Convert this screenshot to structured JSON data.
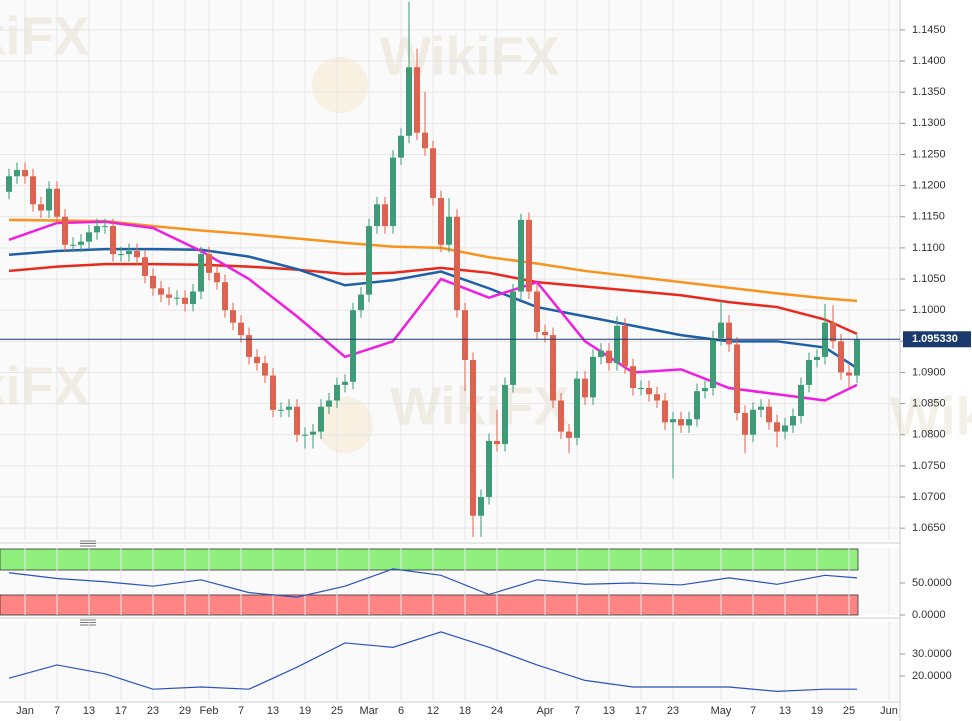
{
  "watermark": "WikiFX",
  "chart_data": [
    {
      "type": "candlestick",
      "categories": [
        null,
        null,
        "Jan",
        null,
        null,
        null,
        "7",
        null,
        null,
        null,
        "13",
        null,
        null,
        null,
        "17",
        null,
        null,
        null,
        "23",
        null,
        null,
        null,
        "29",
        null,
        null,
        "Feb",
        null,
        null,
        null,
        "7",
        null,
        null,
        null,
        "13",
        null,
        null,
        null,
        "19",
        null,
        null,
        null,
        "25",
        null,
        null,
        null,
        "Mar",
        null,
        null,
        null,
        "6",
        null,
        null,
        null,
        "12",
        null,
        null,
        null,
        "18",
        null,
        null,
        null,
        "24",
        null,
        null,
        null,
        null,
        null,
        "Apr",
        null,
        null,
        null,
        "7",
        null,
        null,
        null,
        "13",
        null,
        null,
        null,
        "17",
        null,
        null,
        null,
        "23",
        null,
        null,
        null,
        null,
        null,
        "May",
        null,
        null,
        null,
        "7",
        null,
        null,
        null,
        "13",
        null,
        null,
        null,
        "19",
        null,
        null,
        null,
        "25",
        null,
        null,
        null,
        null,
        "Jun"
      ],
      "open": [
        1.119,
        1.1215,
        1.1225,
        1.1215,
        1.117,
        1.116,
        1.1195,
        1.115,
        1.1105,
        1.1105,
        1.111,
        1.1125,
        1.1135,
        1.1135,
        1.109,
        1.109,
        1.1095,
        1.1085,
        1.1055,
        1.1035,
        1.1025,
        1.102,
        1.102,
        1.101,
        1.103,
        1.109,
        1.106,
        1.1045,
        1.1,
        1.098,
        1.096,
        1.0925,
        1.0915,
        1.0895,
        1.084,
        1.084,
        1.0845,
        1.08,
        1.08,
        1.0805,
        1.0845,
        1.0855,
        1.088,
        1.0885,
        1.1,
        1.1025,
        1.1135,
        1.117,
        1.1135,
        1.1245,
        1.128,
        1.139,
        1.1285,
        1.126,
        1.118,
        1.1105,
        1.115,
        1.1,
        1.092,
        1.067,
        1.07,
        1.079,
        1.0785,
        1.088,
        1.103,
        1.1145,
        1.103,
        1.0965,
        1.096,
        1.0855,
        1.0805,
        1.0795,
        1.089,
        1.086,
        1.0925,
        1.0935,
        1.0915,
        1.0975,
        1.091,
        1.0875,
        1.0875,
        1.0865,
        1.0855,
        1.082,
        1.0825,
        1.0815,
        1.0825,
        1.087,
        1.0875,
        1.0955,
        1.098,
        1.0945,
        1.0835,
        1.08,
        1.084,
        1.0845,
        1.082,
        1.0805,
        1.0815,
        1.083,
        1.088,
        1.092,
        1.0925,
        1.098,
        1.095,
        1.09,
        1.0895,
        null,
        null,
        null,
        null
      ],
      "high": [
        1.1227,
        1.1237,
        1.1237,
        1.1227,
        1.1182,
        1.1207,
        1.1207,
        1.1162,
        1.1117,
        1.1122,
        1.1137,
        1.1147,
        1.1147,
        1.1147,
        1.1102,
        1.1107,
        1.1107,
        1.1097,
        1.1067,
        1.1047,
        1.1037,
        1.1032,
        1.1032,
        1.1042,
        1.1102,
        1.1102,
        1.1072,
        1.1057,
        1.1012,
        1.0992,
        1.0972,
        1.0937,
        1.0927,
        1.0907,
        1.0852,
        1.0857,
        1.0857,
        1.0812,
        1.0817,
        1.0857,
        1.0867,
        1.0892,
        1.0897,
        1.1012,
        1.1037,
        1.1147,
        1.1182,
        1.1182,
        1.1257,
        1.1292,
        1.1495,
        1.142,
        1.135,
        1.1272,
        1.1192,
        1.118,
        1.1162,
        1.1012,
        1.0932,
        1.0712,
        1.0802,
        1.084,
        1.0892,
        1.1042,
        1.1155,
        1.1157,
        1.1042,
        1.0977,
        1.0972,
        1.0867,
        1.0817,
        1.0902,
        1.0902,
        1.0937,
        1.0947,
        1.0947,
        1.099,
        1.0987,
        1.0922,
        1.0887,
        1.0887,
        1.0877,
        1.0867,
        1.0837,
        1.0837,
        1.0837,
        1.0882,
        1.0887,
        1.0967,
        1.1015,
        1.0992,
        1.0957,
        1.0847,
        1.0852,
        1.0857,
        1.0857,
        1.0832,
        1.0827,
        1.0842,
        1.0892,
        1.0932,
        1.0937,
        1.101,
        1.1008,
        1.0962,
        1.0912,
        1.096,
        null,
        null,
        null,
        null
      ],
      "low": [
        1.1178,
        1.1203,
        1.1203,
        1.1158,
        1.1148,
        1.1148,
        1.1138,
        1.1093,
        1.1093,
        1.1093,
        1.1098,
        1.1113,
        1.1123,
        1.1078,
        1.1078,
        1.1078,
        1.1073,
        1.1043,
        1.1023,
        1.1013,
        1.1008,
        1.1008,
        1.0998,
        1.0998,
        1.1018,
        1.1048,
        1.1033,
        1.0988,
        1.0968,
        1.0948,
        1.0913,
        1.0903,
        1.0883,
        1.0828,
        1.0828,
        1.0828,
        1.0788,
        1.0778,
        1.0778,
        1.0793,
        1.0833,
        1.0843,
        1.0868,
        1.0873,
        1.0988,
        1.1013,
        1.1123,
        1.1123,
        1.1123,
        1.1233,
        1.1268,
        1.1273,
        1.1248,
        1.1168,
        1.1093,
        1.1093,
        1.0988,
        1.087,
        1.0636,
        1.0636,
        1.0688,
        1.0773,
        1.0773,
        1.0868,
        1.1018,
        1.1018,
        1.0953,
        1.0948,
        1.0843,
        1.0793,
        1.077,
        1.0783,
        1.0848,
        1.0848,
        1.0913,
        1.0903,
        1.0903,
        1.0898,
        1.0863,
        1.0863,
        1.0853,
        1.0843,
        1.0808,
        1.073,
        1.0803,
        1.0803,
        1.0813,
        1.0858,
        1.0863,
        1.0943,
        1.0933,
        1.0823,
        1.077,
        1.0788,
        1.0828,
        1.0808,
        1.078,
        1.0793,
        1.0803,
        1.0818,
        1.0868,
        1.0908,
        1.0913,
        1.0938,
        1.0888,
        1.0875,
        1.0883,
        null,
        null,
        null,
        null
      ],
      "close": [
        1.1215,
        1.1225,
        1.1215,
        1.117,
        1.116,
        1.1195,
        1.115,
        1.1105,
        1.1105,
        1.111,
        1.1125,
        1.1135,
        1.1135,
        1.109,
        1.109,
        1.1095,
        1.1085,
        1.1055,
        1.1035,
        1.1025,
        1.102,
        1.102,
        1.101,
        1.103,
        1.109,
        1.106,
        1.1045,
        1.1,
        1.098,
        1.096,
        1.0925,
        1.0915,
        1.0895,
        1.084,
        1.084,
        1.0845,
        1.08,
        1.08,
        1.0805,
        1.0845,
        1.0855,
        1.088,
        1.0885,
        1.1,
        1.1025,
        1.1135,
        1.117,
        1.1135,
        1.1245,
        1.128,
        1.139,
        1.1285,
        1.126,
        1.118,
        1.1105,
        1.115,
        1.1,
        1.092,
        1.067,
        1.07,
        1.079,
        1.0785,
        1.088,
        1.103,
        1.1145,
        1.103,
        1.0965,
        1.096,
        1.0855,
        1.0805,
        1.0795,
        1.089,
        1.086,
        1.0925,
        1.0935,
        1.0915,
        1.0975,
        1.091,
        1.0875,
        1.0875,
        1.0865,
        1.0855,
        1.082,
        1.0825,
        1.0815,
        1.0825,
        1.087,
        1.0875,
        1.0955,
        1.098,
        1.0945,
        1.0835,
        1.08,
        1.084,
        1.0845,
        1.082,
        1.0805,
        1.0815,
        1.083,
        1.088,
        1.092,
        1.0925,
        1.098,
        1.095,
        1.09,
        1.0895,
        1.09533,
        null,
        null,
        null,
        null
      ],
      "up_color": "#3d9b77",
      "down_color": "#dd6350",
      "series": [
        {
          "color": "#f7941d",
          "x": [
            0,
            6,
            12,
            18,
            24,
            30,
            36,
            42,
            48,
            54,
            60,
            66,
            72,
            78,
            84,
            90,
            96,
            102,
            106
          ],
          "values": [
            1.1145,
            1.1144,
            1.1143,
            1.1135,
            1.1128,
            1.1122,
            1.1115,
            1.1108,
            1.1102,
            1.11,
            1.1085,
            1.1075,
            1.1063,
            1.1054,
            1.1045,
            1.1036,
            1.1027,
            1.1019,
            1.1015
          ]
        },
        {
          "color": "#e8291c",
          "x": [
            0,
            6,
            12,
            18,
            24,
            30,
            36,
            42,
            48,
            54,
            60,
            66,
            72,
            78,
            84,
            90,
            96,
            102,
            106
          ],
          "values": [
            1.1063,
            1.107,
            1.1074,
            1.1074,
            1.1073,
            1.107,
            1.1065,
            1.1058,
            1.106,
            1.1068,
            1.106,
            1.1045,
            1.1038,
            1.1031,
            1.1024,
            1.1013,
            1.1005,
            1.0985,
            1.0962
          ]
        },
        {
          "color": "#1f5fa8",
          "x": [
            0,
            6,
            12,
            18,
            24,
            30,
            36,
            42,
            48,
            54,
            60,
            66,
            72,
            78,
            84,
            90,
            96,
            102,
            106
          ],
          "values": [
            1.1089,
            1.1095,
            1.1098,
            1.1098,
            1.1097,
            1.1086,
            1.1066,
            1.104,
            1.1048,
            1.1062,
            1.1035,
            1.1005,
            1.099,
            1.0975,
            1.096,
            1.095,
            1.095,
            1.094,
            1.0907
          ]
        },
        {
          "color": "#ee1fe0",
          "x": [
            0,
            6,
            12,
            18,
            24,
            30,
            36,
            42,
            48,
            54,
            60,
            66,
            72,
            78,
            84,
            90,
            96,
            102,
            106
          ],
          "values": [
            1.1113,
            1.114,
            1.1142,
            1.1132,
            1.1095,
            1.105,
            1.099,
            1.0925,
            1.095,
            1.105,
            1.102,
            1.1045,
            1.095,
            1.09,
            1.0905,
            1.0875,
            1.0865,
            1.0855,
            1.088
          ]
        }
      ],
      "price_label": {
        "value": 1.09533,
        "label": "1.095330"
      },
      "ylim": [
        1.0631,
        1.1498
      ],
      "yticks": [
        {
          "value": 1.065,
          "label": "1.0650"
        },
        {
          "value": 1.07,
          "label": "1.0700"
        },
        {
          "value": 1.075,
          "label": "1.0750"
        },
        {
          "value": 1.08,
          "label": "1.0800"
        },
        {
          "value": 1.085,
          "label": "1.0850"
        },
        {
          "value": 1.09,
          "label": "1.0900"
        },
        {
          "value": 1.095,
          "label": "1.0950"
        },
        {
          "value": 1.1,
          "label": "1.1000"
        },
        {
          "value": 1.105,
          "label": "1.1050"
        },
        {
          "value": 1.11,
          "label": "1.1100"
        },
        {
          "value": 1.115,
          "label": "1.1150"
        },
        {
          "value": 1.12,
          "label": "1.1200"
        },
        {
          "value": 1.125,
          "label": "1.1250"
        },
        {
          "value": 1.13,
          "label": "1.1300"
        },
        {
          "value": 1.135,
          "label": "1.1350"
        },
        {
          "value": 1.14,
          "label": "1.1400"
        },
        {
          "value": 1.145,
          "label": "1.1450"
        }
      ],
      "grid": true
    },
    {
      "type": "line",
      "series": [
        {
          "color": "#2a52be",
          "x": [
            0,
            6,
            12,
            18,
            24,
            30,
            36,
            42,
            48,
            54,
            60,
            66,
            72,
            78,
            84,
            90,
            96,
            102,
            106
          ],
          "values": [
            66,
            57,
            52,
            45,
            55,
            35,
            28,
            45,
            72,
            62,
            32,
            55,
            48,
            50,
            47,
            58,
            48,
            62,
            58
          ]
        }
      ],
      "ylim": [
        0,
        104.7
      ],
      "yticks": [
        {
          "value": 50,
          "label": "50.0000"
        },
        {
          "value": 0,
          "label": "0.0000"
        }
      ]
    },
    {
      "type": "line",
      "series": [
        {
          "color": "#2a52be",
          "x": [
            0,
            6,
            12,
            18,
            24,
            30,
            36,
            42,
            48,
            54,
            60,
            66,
            72,
            78,
            84,
            90,
            96,
            102,
            106
          ],
          "values": [
            19,
            25,
            21,
            14,
            15,
            14,
            24,
            35,
            33,
            40,
            33,
            25,
            18,
            15,
            15,
            15,
            13,
            14,
            14
          ]
        }
      ],
      "ylim": [
        9.1,
        44.5
      ],
      "yticks": [
        {
          "value": 30,
          "label": "30.0000"
        },
        {
          "value": 20,
          "label": "20.0000"
        }
      ]
    }
  ]
}
